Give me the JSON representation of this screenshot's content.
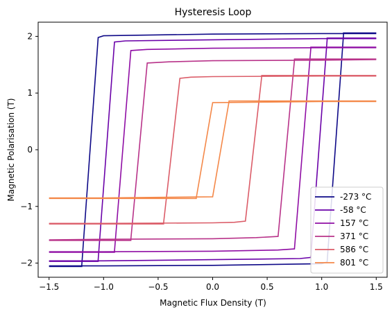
{
  "chart_data": {
    "type": "line",
    "title": "Hysteresis Loop",
    "xlabel": "Magnetic Flux Density (T)",
    "ylabel": "Magnetic Polarisation (T)",
    "xlim": [
      -1.6,
      1.6
    ],
    "ylim": [
      -2.25,
      2.25
    ],
    "x_ticks": [
      -1.5,
      -1.0,
      -0.5,
      0.0,
      0.5,
      1.0,
      1.5
    ],
    "x_tick_labels": [
      "−1.5",
      "−1.0",
      "−0.5",
      "0.0",
      "0.5",
      "1.0",
      "1.5"
    ],
    "y_ticks": [
      -2,
      -1,
      0,
      1,
      2
    ],
    "y_tick_labels": [
      "−2",
      "−1",
      "0",
      "1",
      "2"
    ],
    "grid": false,
    "legend_position": "lower right",
    "series": [
      {
        "name": "-273 °C",
        "color": "#0d0887",
        "upper_branch": {
          "x": [
            -1.5,
            -1.2,
            -1.2,
            -1.05,
            -1.05,
            -1.0,
            0.0,
            1.0,
            1.5
          ],
          "y": [
            -2.06,
            -2.06,
            -2.03,
            1.98,
            1.98,
            2.01,
            2.04,
            2.05,
            2.05
          ]
        },
        "lower_branch": {
          "x": [
            1.5,
            1.2,
            1.2,
            1.05,
            1.05,
            1.0,
            0.0,
            -1.0,
            -1.5
          ],
          "y": [
            2.06,
            2.06,
            2.03,
            -1.98,
            -1.98,
            -2.01,
            -2.04,
            -2.05,
            -2.05
          ]
        }
      },
      {
        "name": "-58 °C",
        "color": "#6a00a8",
        "upper_branch": {
          "x": [
            -1.5,
            -1.05,
            -1.05,
            -0.9,
            -0.9,
            -0.8,
            0.0,
            1.0,
            1.5
          ],
          "y": [
            -1.97,
            -1.97,
            -1.94,
            1.9,
            1.9,
            1.92,
            1.94,
            1.96,
            1.96
          ]
        },
        "lower_branch": {
          "x": [
            1.5,
            1.05,
            1.05,
            0.9,
            0.9,
            0.8,
            0.0,
            -1.0,
            -1.5
          ],
          "y": [
            1.97,
            1.97,
            1.94,
            -1.9,
            -1.9,
            -1.92,
            -1.94,
            -1.96,
            -1.96
          ]
        }
      },
      {
        "name": "157 °C",
        "color": "#8f0da4",
        "upper_branch": {
          "x": [
            -1.5,
            -0.9,
            -0.9,
            -0.75,
            -0.75,
            -0.6,
            0.0,
            1.0,
            1.5
          ],
          "y": [
            -1.81,
            -1.81,
            -1.79,
            1.75,
            1.75,
            1.77,
            1.79,
            1.8,
            1.8
          ]
        },
        "lower_branch": {
          "x": [
            1.5,
            0.9,
            0.9,
            0.75,
            0.75,
            0.6,
            0.0,
            -1.0,
            -1.5
          ],
          "y": [
            1.81,
            1.81,
            1.79,
            -1.75,
            -1.75,
            -1.77,
            -1.79,
            -1.8,
            -1.8
          ]
        }
      },
      {
        "name": "371 °C",
        "color": "#b83289",
        "upper_branch": {
          "x": [
            -1.5,
            -0.75,
            -0.75,
            -0.6,
            -0.6,
            -0.4,
            0.0,
            1.0,
            1.5
          ],
          "y": [
            -1.6,
            -1.6,
            -1.58,
            1.53,
            1.53,
            1.55,
            1.57,
            1.58,
            1.59
          ]
        },
        "lower_branch": {
          "x": [
            1.5,
            0.75,
            0.75,
            0.6,
            0.6,
            0.4,
            0.0,
            -1.0,
            -1.5
          ],
          "y": [
            1.6,
            1.6,
            1.58,
            -1.53,
            -1.53,
            -1.55,
            -1.57,
            -1.58,
            -1.59
          ]
        }
      },
      {
        "name": "586 °C",
        "color": "#db5c68",
        "upper_branch": {
          "x": [
            -1.5,
            -0.45,
            -0.45,
            -0.3,
            -0.3,
            -0.2,
            0.0,
            1.0,
            1.5
          ],
          "y": [
            -1.31,
            -1.31,
            -1.29,
            1.26,
            1.26,
            1.28,
            1.29,
            1.3,
            1.3
          ]
        },
        "lower_branch": {
          "x": [
            1.5,
            0.45,
            0.45,
            0.3,
            0.3,
            0.2,
            0.0,
            -1.0,
            -1.5
          ],
          "y": [
            1.31,
            1.31,
            1.29,
            -1.26,
            -1.26,
            -1.28,
            -1.29,
            -1.3,
            -1.3
          ]
        }
      },
      {
        "name": "801 °C",
        "color": "#f48849",
        "upper_branch": {
          "x": [
            -1.5,
            -0.15,
            -0.15,
            0.0,
            0.0,
            0.5,
            1.0,
            1.5
          ],
          "y": [
            -0.86,
            -0.86,
            -0.85,
            0.83,
            0.83,
            0.84,
            0.85,
            0.85
          ]
        },
        "lower_branch": {
          "x": [
            1.5,
            0.15,
            0.15,
            0.0,
            0.0,
            -0.5,
            -1.0,
            -1.5
          ],
          "y": [
            0.86,
            0.86,
            0.85,
            -0.83,
            -0.83,
            -0.84,
            -0.85,
            -0.85
          ]
        }
      }
    ]
  }
}
